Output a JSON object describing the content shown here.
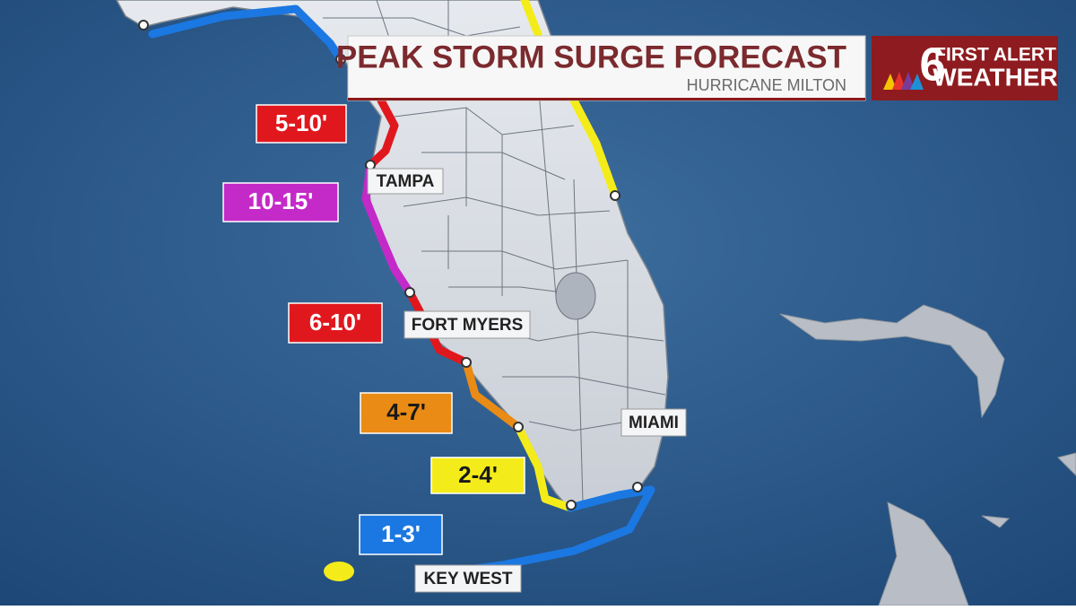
{
  "header": {
    "title": "PEAK STORM SURGE FORECAST",
    "subtitle": "HURRICANE MILTON"
  },
  "logo": {
    "number": "6",
    "line1": "FIRST ALERT",
    "line2": "WEATHER"
  },
  "surge_labels": [
    {
      "label": "5-10'",
      "color": "#e0181d",
      "text_color": "#ffffff"
    },
    {
      "label": "10-15'",
      "color": "#c42ac8",
      "text_color": "#ffffff"
    },
    {
      "label": "6-10'",
      "color": "#e0181d",
      "text_color": "#ffffff"
    },
    {
      "label": "4-7'",
      "color": "#e98b14",
      "text_color": "#1a1a1a"
    },
    {
      "label": "2-4'",
      "color": "#f4ec1a",
      "text_color": "#1a1a1a"
    },
    {
      "label": "1-3'",
      "color": "#1b78e2",
      "text_color": "#ffffff"
    }
  ],
  "cities": [
    "TAMPA",
    "FORT MYERS",
    "MIAMI",
    "KEY WEST"
  ]
}
